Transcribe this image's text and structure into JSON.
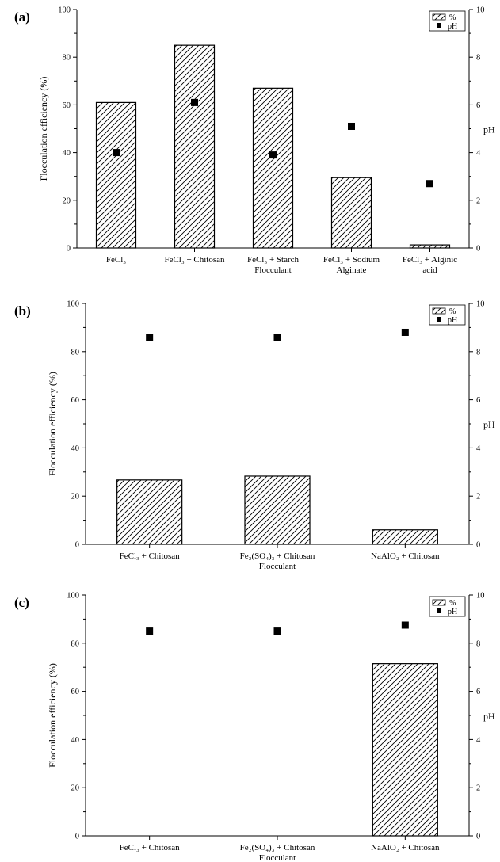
{
  "chart_data": [
    {
      "type": "bar",
      "panel_label": "(a)",
      "categories": [
        [
          "FeCl₃"
        ],
        [
          "FeCl₃ + Chitosan"
        ],
        [
          "FeCl₃ + Starch",
          "Flocculant"
        ],
        [
          "FeCl₃ + Sodium",
          "Alginate"
        ],
        [
          "FeCl₃ + Alginic",
          "acid"
        ]
      ],
      "series": [
        {
          "name": "%",
          "axis": "left",
          "kind": "bar",
          "pattern": "hatched",
          "values": [
            61,
            85,
            67,
            29.5,
            1.3
          ]
        },
        {
          "name": "pH",
          "axis": "right",
          "kind": "marker",
          "marker": "square",
          "values": [
            4.0,
            6.1,
            3.9,
            5.1,
            2.7
          ]
        }
      ],
      "ylabel": "Flocculation efficiency (%)",
      "y2label": "pH",
      "ylim": [
        0,
        100
      ],
      "y2lim": [
        0,
        10
      ],
      "yticks": [
        0,
        20,
        40,
        60,
        80,
        100
      ],
      "y2ticks": [
        0,
        2,
        4,
        6,
        8,
        10
      ],
      "legend": "top-right"
    },
    {
      "type": "bar",
      "panel_label": "(b)",
      "categories": [
        [
          "FeCl₃ + Chitosan"
        ],
        [
          "Fe₂(SO₄)₃ + Chitosan",
          "Flocculant"
        ],
        [
          "NaAlO₂ + Chitosan"
        ]
      ],
      "series": [
        {
          "name": "%",
          "axis": "left",
          "kind": "bar",
          "pattern": "hatched",
          "values": [
            26.7,
            28.3,
            6
          ]
        },
        {
          "name": "pH",
          "axis": "right",
          "kind": "marker",
          "marker": "square",
          "values": [
            8.6,
            8.6,
            8.8
          ]
        }
      ],
      "ylabel": "Flocculation efficiency (%)",
      "y2label": "pH",
      "ylim": [
        0,
        100
      ],
      "y2lim": [
        0,
        10
      ],
      "yticks": [
        0,
        20,
        40,
        60,
        80,
        100
      ],
      "y2ticks": [
        0,
        2,
        4,
        6,
        8,
        10
      ],
      "legend": "top-right"
    },
    {
      "type": "bar",
      "panel_label": "(c)",
      "categories": [
        [
          "FeCl₃ + Chitosan"
        ],
        [
          "Fe₂(SO₄)₃ + Chitosan",
          "Flocculant"
        ],
        [
          "NaAlO₂ + Chitosan"
        ]
      ],
      "series": [
        {
          "name": "%",
          "axis": "left",
          "kind": "bar",
          "pattern": "hatched",
          "values": [
            0,
            0,
            71.5
          ]
        },
        {
          "name": "pH",
          "axis": "right",
          "kind": "marker",
          "marker": "square",
          "values": [
            8.5,
            8.5,
            8.75
          ]
        }
      ],
      "ylabel": "Flocculation efficiency (%)",
      "y2label": "pH",
      "ylim": [
        0,
        100
      ],
      "y2lim": [
        0,
        10
      ],
      "yticks": [
        0,
        20,
        40,
        60,
        80,
        100
      ],
      "y2ticks": [
        0,
        2,
        4,
        6,
        8,
        10
      ],
      "legend": "top-right"
    }
  ]
}
